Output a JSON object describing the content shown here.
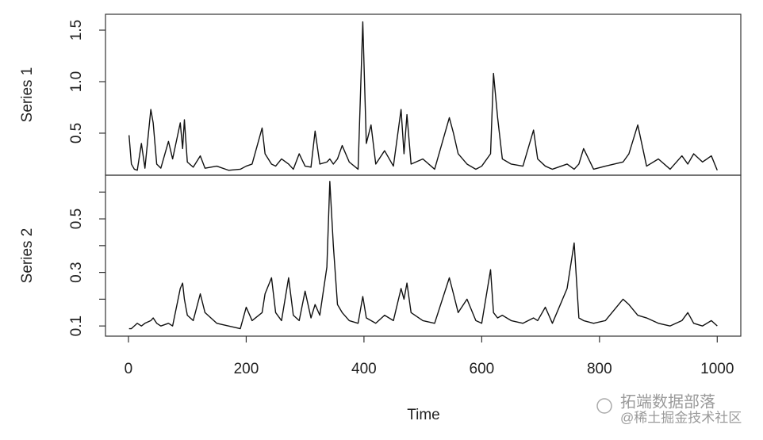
{
  "chart_data": {
    "type": "line",
    "xlabel": "Time",
    "x": [
      1,
      5,
      10,
      15,
      22,
      28,
      38,
      42,
      48,
      55,
      68,
      75,
      88,
      92,
      95,
      100,
      110,
      122,
      130,
      150,
      170,
      190,
      200,
      210,
      227,
      232,
      243,
      250,
      260,
      272,
      280,
      290,
      300,
      310,
      317,
      325,
      337,
      342,
      348,
      355,
      363,
      375,
      390,
      398,
      404,
      412,
      420,
      435,
      450,
      463,
      468,
      473,
      480,
      500,
      520,
      545,
      552,
      560,
      575,
      590,
      600,
      615,
      620,
      627,
      635,
      650,
      670,
      688,
      695,
      708,
      720,
      745,
      757,
      765,
      773,
      790,
      810,
      840,
      850,
      865,
      880,
      900,
      920,
      940,
      950,
      960,
      975,
      990,
      1000
    ],
    "xlim": [
      -39,
      1040
    ],
    "xticks": [
      0,
      200,
      400,
      600,
      800,
      1000
    ],
    "series": [
      {
        "name": "Series 1",
        "color": "#111111",
        "ylim": [
          0.092,
          1.654
        ],
        "yticks": [
          0.5,
          {
            "value": 1,
            "label": "1.0"
          },
          1.5
        ],
        "values": [
          0.48,
          0.2,
          0.15,
          0.14,
          0.4,
          0.16,
          0.73,
          0.6,
          0.2,
          0.16,
          0.42,
          0.25,
          0.6,
          0.35,
          0.63,
          0.22,
          0.17,
          0.28,
          0.16,
          0.18,
          0.14,
          0.15,
          0.18,
          0.2,
          0.55,
          0.3,
          0.2,
          0.18,
          0.25,
          0.2,
          0.15,
          0.3,
          0.18,
          0.17,
          0.52,
          0.2,
          0.22,
          0.25,
          0.2,
          0.25,
          0.38,
          0.22,
          0.15,
          1.58,
          0.4,
          0.58,
          0.2,
          0.33,
          0.18,
          0.73,
          0.3,
          0.68,
          0.2,
          0.25,
          0.15,
          0.65,
          0.5,
          0.3,
          0.2,
          0.15,
          0.18,
          0.3,
          1.08,
          0.65,
          0.25,
          0.2,
          0.18,
          0.53,
          0.25,
          0.18,
          0.15,
          0.2,
          0.15,
          0.2,
          0.35,
          0.15,
          0.18,
          0.22,
          0.3,
          0.58,
          0.18,
          0.25,
          0.15,
          0.28,
          0.2,
          0.3,
          0.22,
          0.28,
          0.14
        ]
      },
      {
        "name": "Series 2",
        "color": "#111111",
        "ylim": [
          0.062,
          0.663
        ],
        "yticks": [
          0.1,
          0.3,
          0.5
        ],
        "yminorticks": [
          0.2,
          0.4,
          0.6
        ],
        "values": [
          0.09,
          0.09,
          0.1,
          0.11,
          0.1,
          0.11,
          0.12,
          0.13,
          0.11,
          0.1,
          0.11,
          0.1,
          0.24,
          0.26,
          0.2,
          0.14,
          0.12,
          0.22,
          0.15,
          0.11,
          0.1,
          0.09,
          0.17,
          0.12,
          0.15,
          0.22,
          0.28,
          0.15,
          0.12,
          0.28,
          0.14,
          0.12,
          0.23,
          0.13,
          0.18,
          0.14,
          0.32,
          0.64,
          0.4,
          0.18,
          0.15,
          0.12,
          0.11,
          0.21,
          0.13,
          0.12,
          0.11,
          0.14,
          0.12,
          0.24,
          0.2,
          0.26,
          0.15,
          0.12,
          0.11,
          0.28,
          0.22,
          0.15,
          0.2,
          0.12,
          0.11,
          0.31,
          0.15,
          0.13,
          0.14,
          0.12,
          0.11,
          0.13,
          0.12,
          0.17,
          0.11,
          0.24,
          0.41,
          0.13,
          0.12,
          0.11,
          0.12,
          0.2,
          0.18,
          0.14,
          0.13,
          0.11,
          0.1,
          0.12,
          0.15,
          0.11,
          0.1,
          0.12,
          0.1
        ]
      }
    ]
  },
  "watermark": {
    "line1": "拓端数据部落",
    "line2": "@稀土掘金技术社区"
  }
}
